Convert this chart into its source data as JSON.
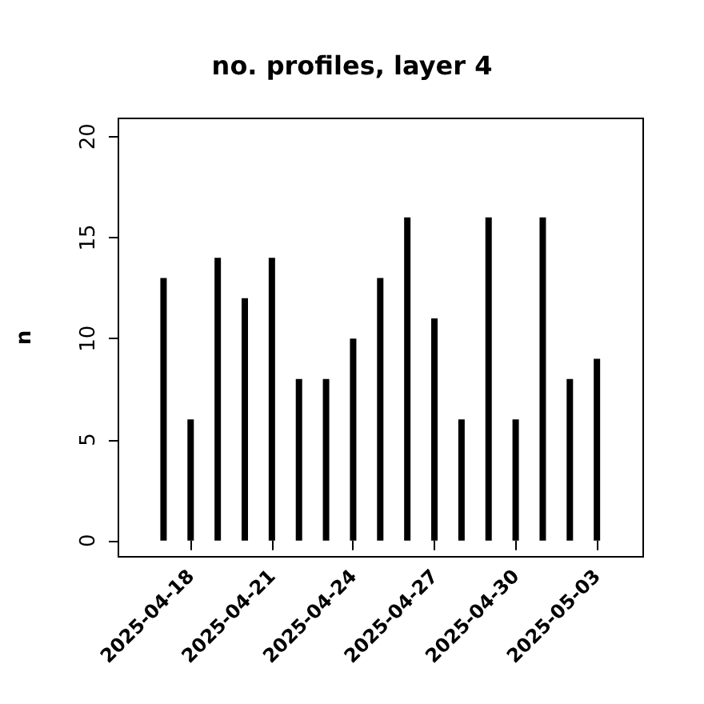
{
  "chart_data": {
    "type": "bar",
    "title": "no. profiles, layer 4",
    "ylabel": "n",
    "x": [
      "2025-04-17",
      "2025-04-18",
      "2025-04-19",
      "2025-04-20",
      "2025-04-21",
      "2025-04-22",
      "2025-04-23",
      "2025-04-24",
      "2025-04-25",
      "2025-04-26",
      "2025-04-27",
      "2025-04-28",
      "2025-04-29",
      "2025-04-30",
      "2025-05-01",
      "2025-05-02",
      "2025-05-03"
    ],
    "values": [
      13,
      6,
      14,
      12,
      14,
      8,
      8,
      10,
      13,
      16,
      11,
      6,
      16,
      6,
      16,
      8,
      9
    ],
    "color": "#000000",
    "xlim": [
      "2025-04-15T08:00",
      "2025-05-04T17:00"
    ],
    "xticks": [
      "2025-04-18",
      "2025-04-21",
      "2025-04-24",
      "2025-04-27",
      "2025-04-30",
      "2025-05-03"
    ],
    "ylim": [
      -0.8,
      20.9
    ],
    "yticks": [
      0,
      5,
      10,
      15,
      20
    ],
    "grid": false
  }
}
